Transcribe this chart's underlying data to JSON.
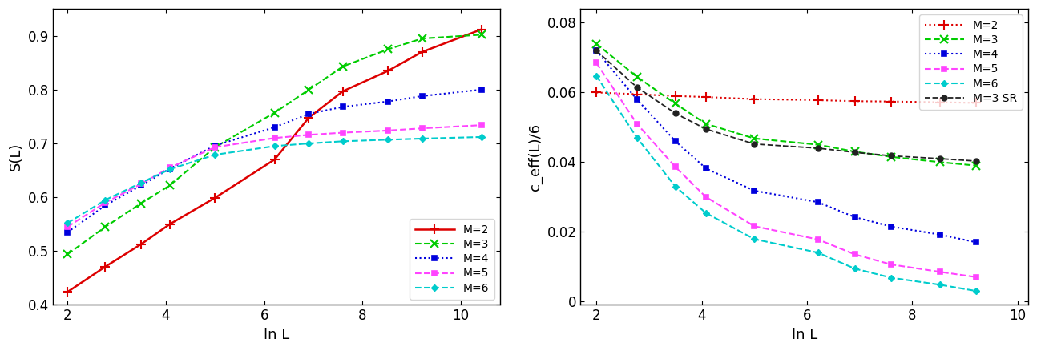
{
  "left": {
    "xlabel": "ln L",
    "ylabel": "S(L)",
    "xlim": [
      1.7,
      10.8
    ],
    "ylim": [
      0.4,
      0.95
    ],
    "yticks": [
      0.4,
      0.5,
      0.6,
      0.7,
      0.8,
      0.9
    ],
    "xticks": [
      2,
      4,
      6,
      8,
      10
    ],
    "series": [
      {
        "label": "M=2",
        "color": "#dd0000",
        "linestyle": "-",
        "marker": "+",
        "markersize": 8,
        "markeredgewidth": 1.5,
        "linewidth": 1.8,
        "x": [
          2.0,
          2.77,
          3.5,
          4.08,
          5.0,
          6.21,
          6.91,
          7.6,
          8.52,
          9.21,
          10.42
        ],
        "y": [
          0.424,
          0.471,
          0.513,
          0.55,
          0.599,
          0.67,
          0.748,
          0.797,
          0.835,
          0.87,
          0.912
        ]
      },
      {
        "label": "M=3",
        "color": "#00cc00",
        "linestyle": "--",
        "marker": "x",
        "markersize": 7,
        "markeredgewidth": 1.5,
        "linewidth": 1.5,
        "x": [
          2.0,
          2.77,
          3.5,
          4.08,
          5.0,
          6.21,
          6.91,
          7.6,
          8.52,
          9.21,
          10.42
        ],
        "y": [
          0.494,
          0.545,
          0.589,
          0.622,
          0.693,
          0.757,
          0.8,
          0.843,
          0.875,
          0.895,
          0.902
        ]
      },
      {
        "label": "M=4",
        "color": "#0000dd",
        "linestyle": ":",
        "marker": "s",
        "markersize": 5,
        "markeredgewidth": 1.2,
        "linewidth": 1.5,
        "x": [
          2.0,
          2.77,
          3.5,
          4.08,
          5.0,
          6.21,
          6.91,
          7.6,
          8.52,
          9.21,
          10.42
        ],
        "y": [
          0.535,
          0.585,
          0.622,
          0.653,
          0.696,
          0.73,
          0.755,
          0.768,
          0.778,
          0.788,
          0.8
        ]
      },
      {
        "label": "M=5",
        "color": "#ff44ff",
        "linestyle": "--",
        "marker": "s",
        "markersize": 5,
        "markeredgewidth": 1.2,
        "linewidth": 1.5,
        "x": [
          2.0,
          2.77,
          3.5,
          4.08,
          5.0,
          6.21,
          6.91,
          7.6,
          8.52,
          9.21,
          10.42
        ],
        "y": [
          0.545,
          0.59,
          0.625,
          0.655,
          0.693,
          0.71,
          0.716,
          0.72,
          0.724,
          0.728,
          0.734
        ]
      },
      {
        "label": "M=6",
        "color": "#00cccc",
        "linestyle": "--",
        "marker": "D",
        "markersize": 4,
        "markeredgewidth": 1.0,
        "linewidth": 1.5,
        "x": [
          2.0,
          2.77,
          3.5,
          4.08,
          5.0,
          6.21,
          6.91,
          7.6,
          8.52,
          9.21,
          10.42
        ],
        "y": [
          0.552,
          0.595,
          0.627,
          0.652,
          0.679,
          0.695,
          0.7,
          0.704,
          0.707,
          0.709,
          0.712
        ]
      }
    ],
    "legend_loc": "lower right"
  },
  "right": {
    "xlabel": "ln L",
    "ylabel": "c_eff(L)/6",
    "xlim": [
      1.7,
      10.2
    ],
    "ylim": [
      -0.001,
      0.084
    ],
    "yticks": [
      0.0,
      0.02,
      0.04,
      0.06,
      0.08
    ],
    "yticklabels": [
      "0",
      "0.02",
      "0.04",
      "0.06",
      "0.08"
    ],
    "xticks": [
      2,
      4,
      6,
      8,
      10
    ],
    "series": [
      {
        "label": "M=2",
        "color": "#dd0000",
        "linestyle": ":",
        "marker": "+",
        "markersize": 8,
        "markeredgewidth": 1.5,
        "linewidth": 1.5,
        "x": [
          2.0,
          2.77,
          3.5,
          4.08,
          5.0,
          6.21,
          6.91,
          7.6,
          8.52,
          9.21
        ],
        "y": [
          0.06,
          0.0595,
          0.059,
          0.0587,
          0.0581,
          0.0578,
          0.0575,
          0.0574,
          0.0572,
          0.057
        ]
      },
      {
        "label": "M=3",
        "color": "#00cc00",
        "linestyle": "--",
        "marker": "x",
        "markersize": 7,
        "markeredgewidth": 1.5,
        "linewidth": 1.5,
        "x": [
          2.0,
          2.77,
          3.5,
          4.08,
          5.0,
          6.21,
          6.91,
          7.6,
          8.52,
          9.21
        ],
        "y": [
          0.074,
          0.0645,
          0.0568,
          0.051,
          0.0468,
          0.045,
          0.043,
          0.0415,
          0.04,
          0.039
        ]
      },
      {
        "label": "M=4",
        "color": "#0000dd",
        "linestyle": ":",
        "marker": "s",
        "markersize": 5,
        "markeredgewidth": 1.2,
        "linewidth": 1.5,
        "x": [
          2.0,
          2.77,
          3.5,
          4.08,
          5.0,
          6.21,
          6.91,
          7.6,
          8.52,
          9.21
        ],
        "y": [
          0.072,
          0.058,
          0.046,
          0.0382,
          0.0318,
          0.0285,
          0.0242,
          0.0215,
          0.0192,
          0.017
        ]
      },
      {
        "label": "M=5",
        "color": "#ff44ff",
        "linestyle": "--",
        "marker": "s",
        "markersize": 5,
        "markeredgewidth": 1.2,
        "linewidth": 1.5,
        "x": [
          2.0,
          2.77,
          3.5,
          4.08,
          5.0,
          6.21,
          6.91,
          7.6,
          8.52,
          9.21
        ],
        "y": [
          0.0685,
          0.051,
          0.0386,
          0.03,
          0.0216,
          0.0178,
          0.0135,
          0.0106,
          0.0085,
          0.007
        ]
      },
      {
        "label": "M=6",
        "color": "#00cccc",
        "linestyle": "--",
        "marker": "D",
        "markersize": 4,
        "markeredgewidth": 1.0,
        "linewidth": 1.5,
        "x": [
          2.0,
          2.77,
          3.5,
          4.08,
          5.0,
          6.21,
          6.91,
          7.6,
          8.52,
          9.21
        ],
        "y": [
          0.0648,
          0.047,
          0.033,
          0.0254,
          0.0179,
          0.014,
          0.0094,
          0.0068,
          0.0048,
          0.003
        ]
      },
      {
        "label": "M=3 SR",
        "color": "#222222",
        "linestyle": "--",
        "marker": "o",
        "markersize": 5,
        "markeredgewidth": 1.0,
        "linewidth": 1.3,
        "x": [
          2.0,
          2.77,
          3.5,
          4.08,
          5.0,
          6.21,
          6.91,
          7.6,
          8.52,
          9.21
        ],
        "y": [
          0.072,
          0.0615,
          0.054,
          0.0495,
          0.0452,
          0.044,
          0.0428,
          0.0418,
          0.041,
          0.0403
        ]
      }
    ],
    "legend_loc": "upper right"
  }
}
